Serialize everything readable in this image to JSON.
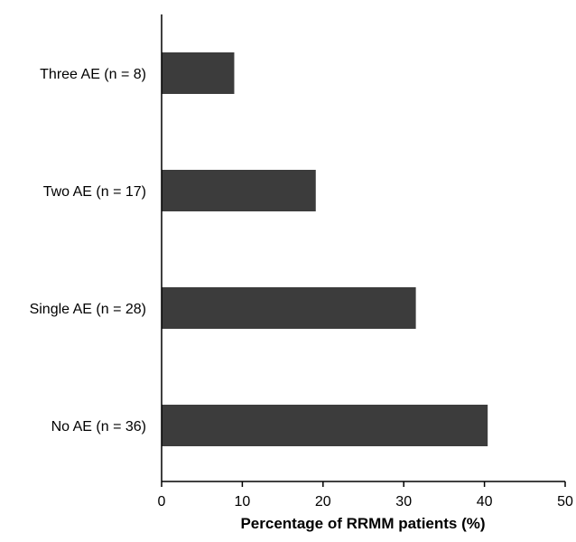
{
  "chart_data": {
    "type": "bar",
    "orientation": "horizontal",
    "categories": [
      "Three AE (n = 8)",
      "Two AE (n = 17)",
      "Single AE (n = 28)",
      "No AE (n = 36)"
    ],
    "values": [
      9.0,
      19.1,
      31.5,
      40.4
    ],
    "xlabel": "Percentage of RRMM patients (%)",
    "ylabel": "",
    "xlim": [
      0,
      50
    ],
    "xticks": [
      0,
      10,
      20,
      30,
      40,
      50
    ],
    "bar_color": "#3c3c3c",
    "grid": false,
    "legend": "none"
  }
}
